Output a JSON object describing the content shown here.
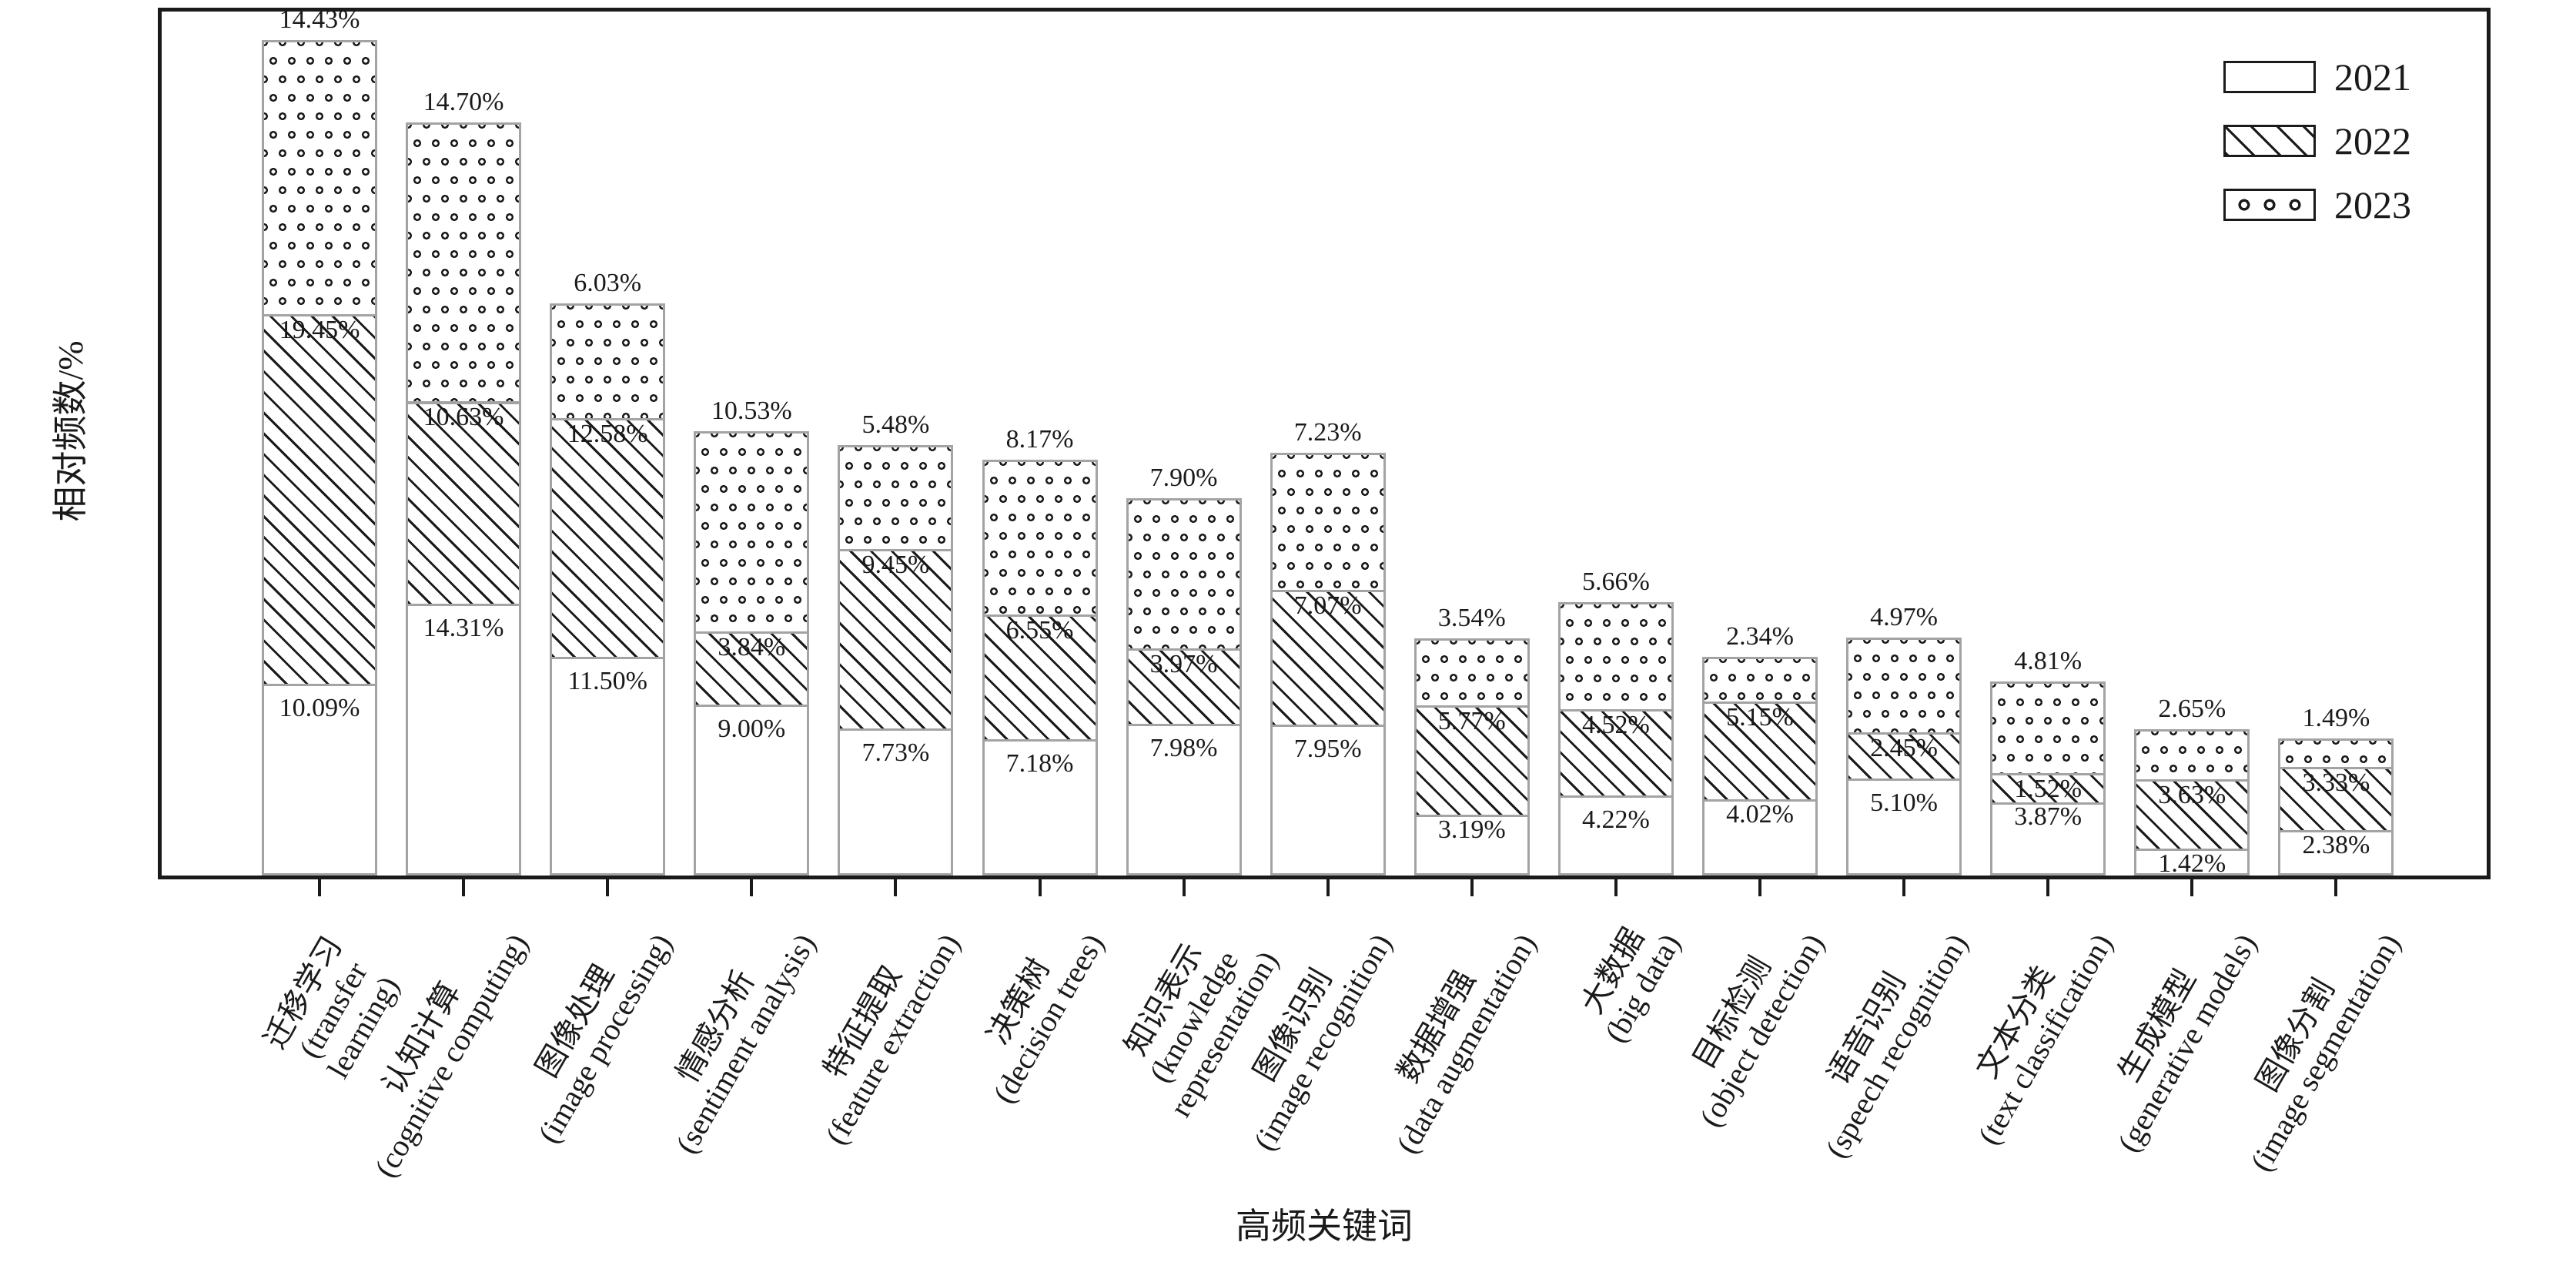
{
  "chart_data": {
    "type": "bar",
    "stacked": true,
    "title": "",
    "xlabel": "高频关键词",
    "ylabel": "相对频数/%",
    "value_suffix": "%",
    "ylim": [
      0,
      45.9
    ],
    "grid": false,
    "legend_position": "top-right",
    "legend": [
      {
        "label": "2021",
        "pattern": "plain"
      },
      {
        "label": "2022",
        "pattern": "hatch"
      },
      {
        "label": "2023",
        "pattern": "dots"
      }
    ],
    "categories": [
      {
        "zh": "迁移学习",
        "en": "(transfer learning)"
      },
      {
        "zh": "认知计算",
        "en": "(cognitive computing)"
      },
      {
        "zh": "图像处理",
        "en": "(image processing)"
      },
      {
        "zh": "情感分析",
        "en": "(sentiment analysis)"
      },
      {
        "zh": "特征提取",
        "en": "(feature extraction)"
      },
      {
        "zh": "决策树",
        "en": "(decision trees)"
      },
      {
        "zh": "知识表示",
        "en": "(knowledge\nrepresentation)"
      },
      {
        "zh": "图像识别",
        "en": "(image recognition)"
      },
      {
        "zh": "数据增强",
        "en": "(data augmentation)"
      },
      {
        "zh": "大数据",
        "en": "(big data)"
      },
      {
        "zh": "目标检测",
        "en": "(object detection)"
      },
      {
        "zh": "语音识别",
        "en": "(speech recognition)"
      },
      {
        "zh": "文本分类",
        "en": "(text classification)"
      },
      {
        "zh": "生成模型",
        "en": "(generative models)"
      },
      {
        "zh": "图像分割",
        "en": "(image segmentation)"
      }
    ],
    "series": [
      {
        "name": "2021",
        "pattern": "plain",
        "values": [
          10.09,
          14.31,
          11.5,
          9.0,
          7.73,
          7.18,
          7.98,
          7.95,
          3.19,
          4.22,
          4.02,
          5.1,
          3.87,
          1.42,
          2.38
        ]
      },
      {
        "name": "2022",
        "pattern": "hatch",
        "values": [
          19.45,
          10.63,
          12.58,
          3.84,
          9.45,
          6.55,
          3.97,
          7.07,
          5.77,
          4.52,
          5.15,
          2.45,
          1.52,
          3.63,
          3.33
        ]
      },
      {
        "name": "2023",
        "pattern": "dots",
        "values": [
          14.43,
          14.7,
          6.03,
          10.53,
          5.48,
          8.17,
          7.9,
          7.23,
          3.54,
          5.66,
          2.34,
          4.97,
          4.81,
          2.65,
          1.49
        ]
      }
    ]
  },
  "colors": {
    "ink": "#1a1a1a",
    "bar_border": "#a3a3a3",
    "background": "#ffffff"
  }
}
